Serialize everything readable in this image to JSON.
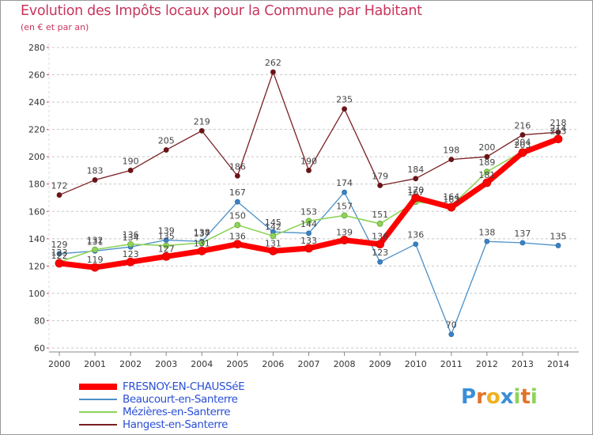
{
  "title": "Evolution des Impôts locaux pour la Commune par Habitant",
  "subtitle": "(en € et par an)",
  "logo": "Proxiti",
  "chart_data": {
    "type": "line",
    "title": "Evolution des Impôts locaux pour la Commune par Habitant",
    "subtitle": "(en € et par an)",
    "xlabel": "",
    "ylabel": "",
    "ylim": [
      60,
      280
    ],
    "yticks": [
      60,
      80,
      100,
      120,
      140,
      160,
      180,
      200,
      220,
      240,
      260,
      280
    ],
    "grid": "horizontal dashed",
    "legend_position": "bottom-left",
    "categories": [
      "2000",
      "2001",
      "2002",
      "2003",
      "2004",
      "2005",
      "2006",
      "2007",
      "2008",
      "2009",
      "2010",
      "2011",
      "2012",
      "2013",
      "2014"
    ],
    "series": [
      {
        "name": "Hangest-en-Santerre",
        "color": "#7a1e22",
        "values": [
          172,
          183,
          190,
          205,
          219,
          186,
          262,
          190,
          235,
          179,
          184,
          198,
          200,
          216,
          218
        ]
      },
      {
        "name": "Beaucourt-en-Santerre",
        "color": "#4a90c8",
        "values": [
          129,
          131,
          134,
          139,
          138,
          167,
          145,
          144,
          174,
          123,
          136,
          70,
          138,
          137,
          135
        ]
      },
      {
        "name": "Mézières-en-Santerre",
        "color": "#8ed35a",
        "values": [
          123,
          132,
          136,
          135,
          137,
          150,
          142,
          153,
          157,
          151,
          167,
          164,
          189,
          204,
          214
        ]
      },
      {
        "name": "FRESNOY-EN-CHAUSSéE",
        "color": "#ff0000",
        "values": [
          122,
          119,
          123,
          127,
          131,
          136,
          131,
          133,
          139,
          136,
          170,
          163,
          181,
          203,
          213
        ]
      }
    ],
    "legend_order": [
      "FRESNOY-EN-CHAUSSéE",
      "Beaucourt-en-Santerre",
      "Mézières-en-Santerre",
      "Hangest-en-Santerre"
    ]
  }
}
